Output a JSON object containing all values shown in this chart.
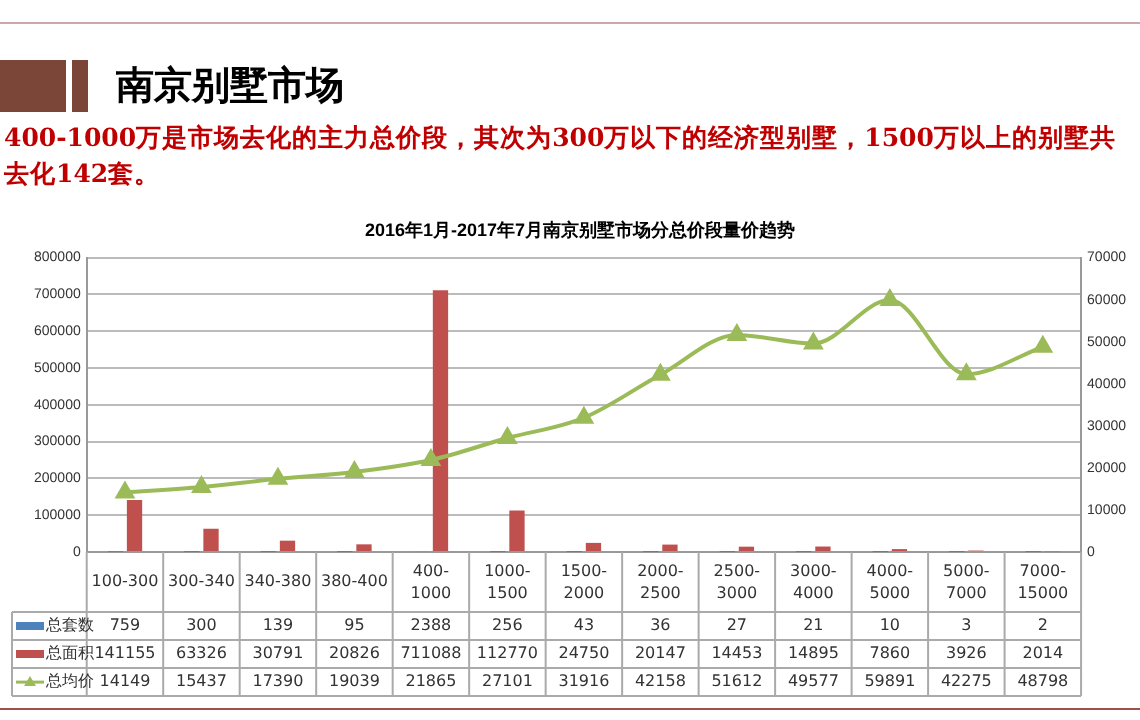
{
  "chart_data": {
    "type": "bar",
    "title": "南京别墅市场",
    "subtitle": "400-1000万是市场去化的主力总价段，其次为300万以下的经济型别墅，1500万以上的别墅共去化142套。",
    "annotations": [
      "2016年1月-2017年7月南京别墅市场分总价段量价趋势"
    ],
    "categories": [
      "100-300",
      "300-340",
      "340-380",
      "380-400",
      "400-1000",
      "1000-1500",
      "1500-2000",
      "2000-2500",
      "2500-3000",
      "3000-4000",
      "4000-5000",
      "5000-7000",
      "7000-15000"
    ],
    "series": [
      {
        "name": "总套数",
        "color": "#4f81bd",
        "values": [
          759,
          300,
          139,
          95,
          2388,
          256,
          43,
          36,
          27,
          21,
          10,
          3,
          2
        ]
      },
      {
        "name": "总面积",
        "color": "#c0504d",
        "values": [
          141155,
          63326,
          30791,
          20826,
          711088,
          112770,
          24750,
          20147,
          14453,
          14895,
          7860,
          3926,
          2014
        ]
      },
      {
        "name": "总均价",
        "type": "line",
        "axis": "y2",
        "color": "#9bbb59",
        "marker": "triangle",
        "values": [
          14149,
          15437,
          17390,
          19039,
          21865,
          27101,
          31916,
          42158,
          51612,
          49577,
          59891,
          42275,
          48798
        ]
      }
    ],
    "ylim": [
      0,
      800000
    ],
    "yticks": [
      0,
      100000,
      200000,
      300000,
      400000,
      500000,
      600000,
      700000,
      800000
    ],
    "y2lim": [
      0,
      70000
    ],
    "y2ticks": [
      0,
      10000,
      20000,
      30000,
      40000,
      50000,
      60000,
      70000
    ],
    "grid": "y",
    "legend": "bottom",
    "data_labels": true
  }
}
